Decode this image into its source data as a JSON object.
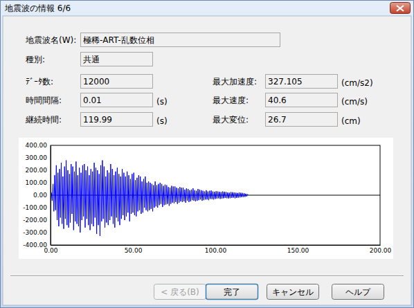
{
  "window": {
    "title": "地震波の情報 6/6"
  },
  "fields": [
    {
      "label": "地震波名(W):",
      "value": "極稀-ART-乱数位相"
    },
    {
      "label": "種別:",
      "value": "共通"
    },
    {
      "label": "ﾃﾞｰﾀ数:",
      "value": "12000"
    },
    {
      "label": "時間間隔:",
      "value": "0.01",
      "unit": "(s)"
    },
    {
      "label": "継続時間:",
      "value": "119.99",
      "unit": "(s)"
    },
    {
      "label": "最大加速度:",
      "value": "327.105",
      "unit": "(cm/s2)"
    },
    {
      "label": "最大速度:",
      "value": "40.6",
      "unit": "(cm/s)"
    },
    {
      "label": "最大変位:",
      "value": "26.7",
      "unit": "(cm)"
    }
  ],
  "buttons": [
    {
      "label": "< 戻る(B)",
      "enabled": false
    },
    {
      "label": "完了",
      "enabled": true,
      "default": true
    },
    {
      "label": "キャンセル",
      "enabled": true
    },
    {
      "label": "ヘルプ",
      "enabled": true
    }
  ],
  "chart_data": {
    "type": "line",
    "color": "#0000ff",
    "grid": false,
    "xlim": [
      0,
      200
    ],
    "ylim": [
      -400,
      400
    ],
    "xticks": [
      {
        "value": 0,
        "label": "0.00"
      },
      {
        "value": 50,
        "label": "50.00"
      },
      {
        "value": 100,
        "label": "100.00"
      },
      {
        "value": 150,
        "label": "150.00"
      },
      {
        "value": 200,
        "label": "200.00"
      }
    ],
    "yticks": [
      {
        "value": -400,
        "label": "-400.00"
      },
      {
        "value": -300,
        "label": "-300.00"
      },
      {
        "value": -200,
        "label": "-200.00"
      },
      {
        "value": -100,
        "label": "-100.00"
      },
      {
        "value": 0,
        "label": "0.00"
      },
      {
        "value": 100,
        "label": "100.00"
      },
      {
        "value": 200,
        "label": "200.00"
      },
      {
        "value": 300,
        "label": "300.00"
      },
      {
        "value": 400,
        "label": "400.00"
      }
    ],
    "x": [
      0,
      0.5,
      1,
      1.5,
      2,
      2.5,
      3,
      3.5,
      4,
      4.5,
      5,
      5.5,
      6,
      6.5,
      7,
      7.5,
      8,
      8.5,
      9,
      9.5,
      10,
      10.5,
      11,
      11.5,
      12,
      12.5,
      13,
      13.5,
      14,
      14.5,
      15,
      15.5,
      16,
      16.5,
      17,
      17.5,
      18,
      18.5,
      19,
      19.5,
      20,
      20.5,
      21,
      21.5,
      22,
      22.5,
      23,
      23.5,
      24,
      24.5,
      25,
      25.5,
      26,
      26.5,
      27,
      27.5,
      28,
      28.5,
      29,
      29.5,
      30,
      30.5,
      31,
      31.5,
      32,
      32.5,
      33,
      33.5,
      34,
      34.5,
      35,
      35.5,
      36,
      36.5,
      37,
      37.5,
      38,
      38.5,
      39,
      39.5,
      40,
      40.5,
      41,
      41.5,
      42,
      42.5,
      43,
      43.5,
      44,
      44.5,
      45,
      45.5,
      46,
      46.5,
      47,
      47.5,
      48,
      48.5,
      49,
      49.5,
      50,
      50.5,
      51,
      51.5,
      52,
      52.5,
      53,
      53.5,
      54,
      54.5,
      55,
      55.5,
      56,
      56.5,
      57,
      57.5,
      58,
      58.5,
      59,
      59.5,
      60,
      60.5,
      61,
      61.5,
      62,
      62.5,
      63,
      63.5,
      64,
      64.5,
      65,
      65.5,
      66,
      66.5,
      67,
      67.5,
      68,
      68.5,
      69,
      69.5,
      70,
      70.5,
      71,
      71.5,
      72,
      72.5,
      73,
      73.5,
      74,
      74.5,
      75,
      75.5,
      76,
      76.5,
      77,
      77.5,
      78,
      78.5,
      79,
      79.5,
      80,
      80.5,
      81,
      81.5,
      82,
      82.5,
      83,
      83.5,
      84,
      84.5,
      85,
      85.5,
      86,
      86.5,
      87,
      87.5,
      88,
      88.5,
      89,
      89.5,
      90,
      90.5,
      91,
      91.5,
      92,
      92.5,
      93,
      93.5,
      94,
      94.5,
      95,
      95.5,
      96,
      96.5,
      97,
      97.5,
      98,
      98.5,
      99,
      99.5,
      100,
      100.5,
      101,
      101.5,
      102,
      102.5,
      103,
      103.5,
      104,
      104.5,
      105,
      105.5,
      106,
      106.5,
      107,
      107.5,
      108,
      108.5,
      109,
      109.5,
      110,
      110.5,
      111,
      111.5,
      112,
      112.5,
      113,
      113.5,
      114,
      114.5,
      115,
      115.5,
      116,
      116.5,
      117,
      117.5,
      118,
      118.5,
      119,
      119.5,
      119.99
    ],
    "values": [
      0,
      20,
      -45,
      90,
      -130,
      160,
      -120,
      240,
      -200,
      180,
      -250,
      210,
      -180,
      260,
      -230,
      150,
      -270,
      230,
      -190,
      280,
      -240,
      200,
      -260,
      170,
      -220,
      250,
      -150,
      230,
      -280,
      190,
      -210,
      270,
      -230,
      160,
      -250,
      220,
      -300,
      180,
      -200,
      240,
      -170,
      250,
      -260,
      200,
      -190,
      230,
      -240,
      160,
      -280,
      210,
      -230,
      190,
      -250,
      260,
      -180,
      220,
      -310,
      200,
      -240,
      170,
      -327,
      240,
      -210,
      280,
      -190,
      230,
      -260,
      150,
      -220,
      200,
      -240,
      180,
      -200,
      250,
      -170,
      210,
      -230,
      160,
      -260,
      190,
      -180,
      220,
      -210,
      170,
      -240,
      150,
      -190,
      210,
      -160,
      180,
      -200,
      150,
      -170,
      190,
      -140,
      160,
      -210,
      130,
      -150,
      170,
      -140,
      180,
      -160,
      120,
      -170,
      140,
      -130,
      160,
      -120,
      150,
      -150,
      110,
      -140,
      130,
      -100,
      150,
      -120,
      100,
      -130,
      110,
      -120,
      100,
      -110,
      90,
      -130,
      80,
      -100,
      110,
      -90,
      80,
      -100,
      90,
      -80,
      100,
      -70,
      90,
      -95,
      75,
      -80,
      85,
      -75,
      80,
      -70,
      65,
      -85,
      60,
      -70,
      75,
      -60,
      70,
      -65,
      70,
      -55,
      60,
      -70,
      55,
      -60,
      65,
      -50,
      60,
      -55,
      60,
      -50,
      45,
      -60,
      55,
      -45,
      50,
      -55,
      40,
      -50,
      45,
      -40,
      55,
      -45,
      40,
      -50,
      35,
      -45,
      50,
      -40,
      45,
      -35,
      40,
      -45,
      35,
      -40,
      30,
      -35,
      40,
      -35,
      30,
      -40,
      35,
      -30,
      38,
      -32,
      30,
      -35,
      28,
      -30,
      32,
      -28,
      30,
      -25,
      28,
      -30,
      25,
      -28,
      30,
      -25,
      28,
      -22,
      26,
      -24,
      22,
      -26,
      20,
      -24,
      25,
      -22,
      24,
      -20,
      22,
      -25,
      20,
      -22,
      18,
      -20,
      22,
      -18,
      20,
      -16,
      18,
      -15,
      16,
      -14,
      12,
      -10,
      8,
      0
    ]
  }
}
